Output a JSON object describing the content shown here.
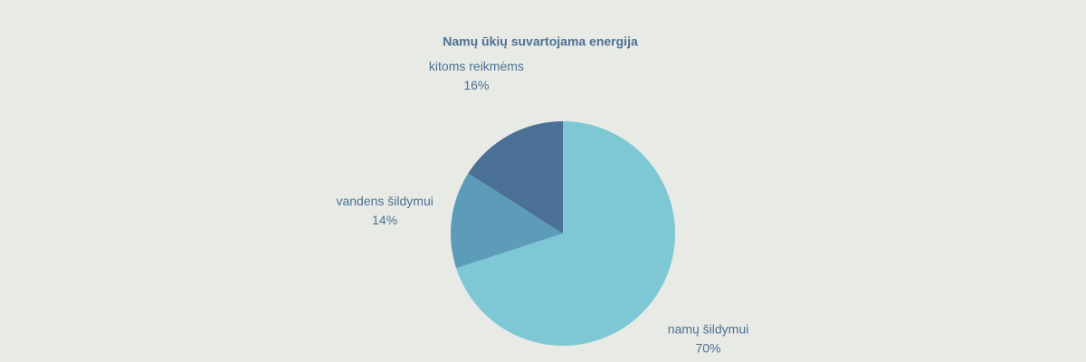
{
  "chart_data": {
    "type": "pie",
    "title": "Namų ūkių suvartojama energija",
    "categories": [
      "namų šildymui",
      "vandens šildymui",
      "kitoms reikmėms"
    ],
    "values": [
      70,
      14,
      16
    ],
    "value_labels": [
      "70%",
      "14%",
      "16%"
    ],
    "colors": [
      "#7ec8d5",
      "#5c9cb9",
      "#4a7095"
    ]
  }
}
